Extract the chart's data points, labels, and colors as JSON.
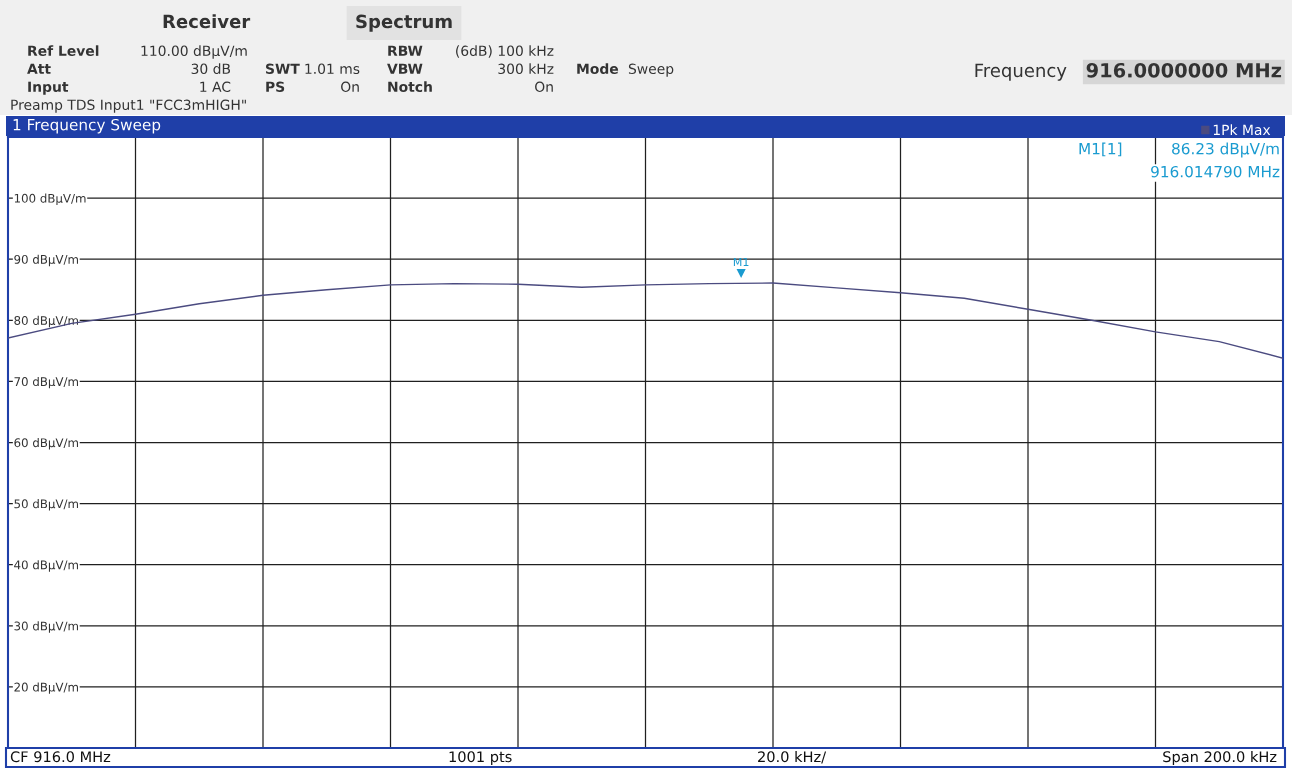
{
  "chart_data": {
    "type": "line",
    "title": "1 Frequency Sweep",
    "categories": [
      null,
      null,
      null,
      null,
      null,
      null,
      null,
      null,
      null,
      null,
      null,
      null,
      null,
      null,
      null,
      null,
      null,
      null,
      null,
      null,
      null
    ],
    "series": [
      {
        "name": "1Pk Max",
        "color": "#4b4b80",
        "values": [
          77.1,
          79.5,
          81.0,
          82.7,
          84.1,
          85.0,
          85.8,
          86.0,
          85.9,
          85.4,
          85.8,
          86.0,
          86.1,
          85.3,
          84.5,
          83.6,
          81.8,
          80.0,
          78.1,
          76.5,
          73.8
        ]
      }
    ],
    "ylim": [
      10,
      110
    ],
    "yticks": [
      {
        "value": 20,
        "label": "20 dBµV/m"
      },
      {
        "value": 30,
        "label": "30 dBµV/m"
      },
      {
        "value": 40,
        "label": "40 dBµV/m"
      },
      {
        "value": 50,
        "label": "50 dBµV/m"
      },
      {
        "value": 60,
        "label": "60 dBµV/m"
      },
      {
        "value": 70,
        "label": "70 dBµV/m"
      },
      {
        "value": 80,
        "label": "80 dBµV/m"
      },
      {
        "value": 90,
        "label": "90 dBµV/m"
      },
      {
        "value": 100,
        "label": "100 dBµV/m"
      }
    ],
    "grid": true,
    "legend": "top right",
    "marker": "none",
    "line_style": "solid",
    "annotations": [
      "Receiver",
      "Spectrum",
      "Ref Level",
      "110.00 dBµV/m",
      "Att",
      "30 dB",
      "Input",
      "1 AC",
      "SWT",
      "1.01 ms",
      "PS",
      "On",
      "RBW",
      "(6dB) 100 kHz",
      "VBW",
      "300 kHz",
      "Notch",
      "On",
      "Mode",
      "Sweep",
      "Preamp TDS Input1 \"FCC3mHIGH\"",
      "Frequency",
      "916.0000000 MHz",
      "M1[1]",
      "86.23 dBµV/m",
      "916.014790 MHz",
      "CF 916.0 MHz",
      "1001 pts",
      "20.0 kHz/",
      "Span 200.0 kHz",
      {
        "text": "M1",
        "y": 86.23
      }
    ]
  }
}
